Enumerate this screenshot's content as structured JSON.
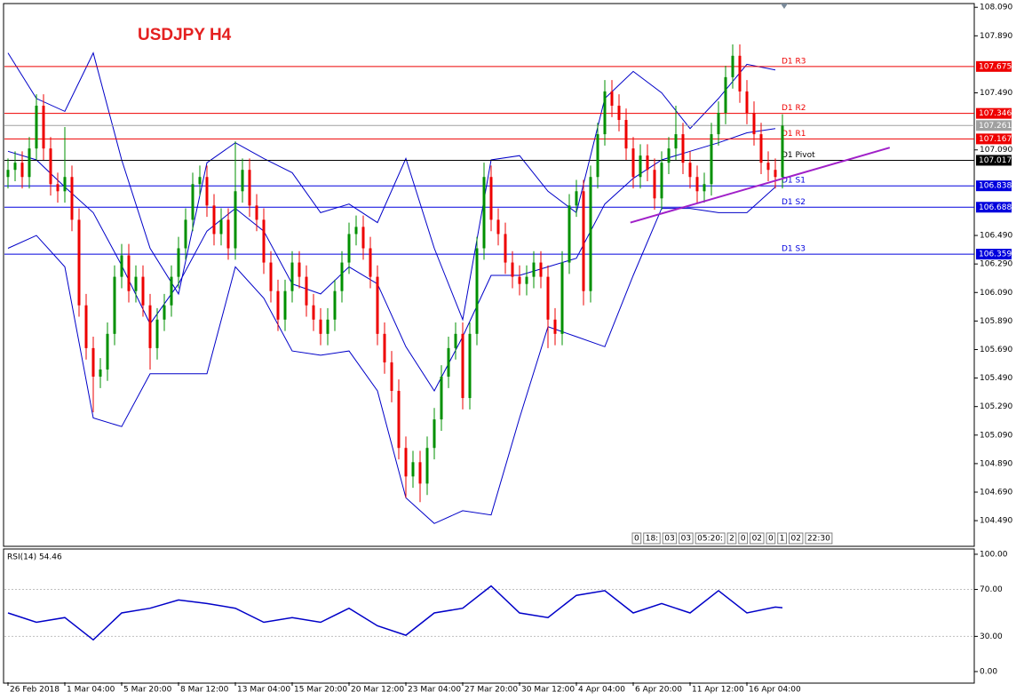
{
  "chart_data": {
    "type": "candlestick",
    "title": "USDJPY  H4",
    "up_color": "#009000",
    "down_color": "#ee0000",
    "xlim": [
      -0.5,
      136
    ],
    "xticks": [
      {
        "value": 0,
        "label": "26 Feb 2018"
      },
      {
        "value": 8,
        "label": "1 Mar 04:00"
      },
      {
        "value": 16,
        "label": "5 Mar 20:00"
      },
      {
        "value": 24,
        "label": "8 Mar 12:00"
      },
      {
        "value": 32,
        "label": "13 Mar 04:00"
      },
      {
        "value": 40,
        "label": "15 Mar 20:00"
      },
      {
        "value": 48,
        "label": "20 Mar 12:00"
      },
      {
        "value": 56,
        "label": "23 Mar 04:00"
      },
      {
        "value": 64,
        "label": "27 Mar 20:00"
      },
      {
        "value": 72,
        "label": "30 Mar 12:00"
      },
      {
        "value": 80,
        "label": "4 Apr 04:00"
      },
      {
        "value": 88,
        "label": "6 Apr 20:00"
      },
      {
        "value": 96,
        "label": "11 Apr 12:00"
      },
      {
        "value": 104,
        "label": "16 Apr 04:00"
      }
    ],
    "ylim": [
      104.31,
      108.11
    ],
    "yticks": [
      {
        "value": 108.09,
        "label": "108.090"
      },
      {
        "value": 107.89,
        "label": "107.890"
      },
      {
        "value": 107.49,
        "label": "107.490"
      },
      {
        "value": 107.09,
        "label": "107.090"
      },
      {
        "value": 106.49,
        "label": "106.490"
      },
      {
        "value": 106.29,
        "label": "106.290"
      },
      {
        "value": 106.09,
        "label": "106.090"
      },
      {
        "value": 105.89,
        "label": "105.890"
      },
      {
        "value": 105.69,
        "label": "105.690"
      },
      {
        "value": 105.49,
        "label": "105.490"
      },
      {
        "value": 105.29,
        "label": "105.290"
      },
      {
        "value": 105.09,
        "label": "105.090"
      },
      {
        "value": 104.89,
        "label": "104.890"
      },
      {
        "value": 104.69,
        "label": "104.690"
      },
      {
        "value": 104.49,
        "label": "104.490"
      }
    ],
    "candles": {
      "open": [
        106.9,
        106.95,
        107.0,
        106.9,
        107.1,
        107.4,
        107.1,
        106.85,
        106.8,
        106.9,
        106.6,
        106.0,
        105.7,
        105.5,
        105.55,
        105.8,
        106.2,
        106.35,
        106.1,
        106.2,
        106.0,
        105.7,
        105.9,
        106.0,
        106.2,
        106.4,
        106.6,
        106.85,
        106.9,
        106.7,
        106.5,
        106.6,
        106.4,
        106.8,
        106.95,
        106.7,
        106.6,
        106.3,
        106.1,
        105.9,
        106.1,
        106.3,
        106.2,
        106.0,
        105.9,
        105.8,
        105.9,
        106.1,
        106.3,
        106.5,
        106.55,
        106.4,
        106.2,
        105.8,
        105.6,
        105.4,
        105.0,
        104.8,
        104.9,
        104.75,
        105.0,
        105.2,
        105.5,
        105.7,
        105.8,
        105.35,
        105.8,
        106.4,
        106.9,
        106.6,
        106.5,
        106.3,
        106.2,
        106.15,
        106.2,
        106.3,
        106.2,
        105.9,
        105.8,
        106.3,
        106.7,
        106.8,
        106.1,
        106.9,
        107.2,
        107.5,
        107.4,
        107.3,
        107.1,
        106.9,
        107.05,
        106.95,
        106.75,
        107.0,
        107.1,
        107.2,
        107.0,
        106.9,
        106.8,
        106.85,
        107.2,
        107.35,
        107.6,
        107.75,
        107.5,
        107.35,
        107.2,
        107.0,
        106.95,
        106.9
      ],
      "high": [
        107.03,
        107.08,
        107.08,
        107.18,
        107.48,
        107.48,
        107.18,
        106.93,
        107.25,
        106.98,
        106.68,
        106.08,
        105.78,
        105.63,
        105.88,
        106.28,
        106.43,
        106.43,
        106.28,
        106.28,
        106.08,
        105.98,
        106.08,
        106.28,
        106.48,
        106.68,
        106.93,
        106.98,
        106.98,
        106.78,
        106.68,
        106.68,
        107.15,
        107.03,
        107.03,
        106.78,
        106.68,
        106.38,
        106.18,
        106.18,
        106.38,
        106.38,
        106.28,
        106.08,
        105.98,
        105.98,
        106.18,
        106.38,
        106.58,
        106.63,
        106.63,
        106.48,
        106.28,
        105.88,
        105.68,
        105.48,
        105.08,
        104.98,
        104.98,
        105.08,
        105.28,
        105.58,
        105.78,
        105.88,
        105.88,
        105.88,
        106.48,
        107.0,
        106.98,
        106.68,
        106.58,
        106.38,
        106.28,
        106.28,
        106.38,
        106.38,
        106.28,
        105.98,
        106.38,
        106.78,
        106.88,
        106.88,
        106.98,
        107.28,
        107.58,
        107.58,
        107.48,
        107.38,
        107.18,
        107.13,
        107.13,
        107.03,
        107.08,
        107.18,
        107.4,
        107.28,
        107.08,
        106.98,
        106.93,
        107.28,
        107.43,
        107.68,
        107.83,
        107.83,
        107.58,
        107.43,
        107.28,
        107.08,
        107.03,
        107.34
      ],
      "low": [
        106.82,
        106.87,
        106.82,
        106.82,
        107.02,
        107.02,
        106.77,
        106.72,
        106.72,
        106.52,
        105.92,
        105.62,
        105.25,
        105.42,
        105.47,
        105.72,
        106.12,
        106.02,
        106.02,
        105.92,
        105.55,
        105.62,
        105.82,
        105.92,
        106.12,
        106.32,
        106.52,
        106.77,
        106.62,
        106.42,
        106.42,
        106.32,
        106.32,
        106.72,
        106.62,
        106.52,
        106.22,
        106.02,
        105.82,
        105.82,
        106.02,
        106.12,
        105.92,
        105.82,
        105.72,
        105.72,
        105.82,
        106.02,
        106.22,
        106.42,
        106.32,
        106.12,
        105.72,
        105.52,
        105.32,
        104.92,
        104.65,
        104.72,
        104.62,
        104.67,
        104.92,
        105.12,
        105.42,
        105.62,
        105.27,
        105.27,
        105.72,
        106.32,
        106.52,
        106.42,
        106.22,
        106.12,
        106.07,
        106.07,
        106.12,
        106.12,
        105.7,
        105.72,
        105.72,
        106.22,
        106.62,
        106.0,
        106.02,
        106.82,
        107.12,
        107.32,
        107.22,
        107.02,
        106.82,
        106.82,
        106.87,
        106.67,
        106.67,
        106.92,
        107.02,
        106.92,
        106.82,
        106.72,
        106.72,
        106.77,
        107.12,
        107.27,
        107.52,
        107.42,
        107.27,
        107.12,
        106.92,
        106.87,
        106.82,
        106.82
      ],
      "close": [
        106.95,
        107.0,
        106.9,
        107.1,
        107.4,
        107.1,
        106.85,
        106.8,
        106.9,
        106.6,
        106.0,
        105.7,
        105.5,
        105.55,
        105.8,
        106.2,
        106.35,
        106.1,
        106.2,
        106.0,
        105.7,
        105.9,
        106.0,
        106.2,
        106.4,
        106.6,
        106.85,
        106.9,
        106.7,
        106.5,
        106.6,
        106.4,
        106.8,
        106.95,
        106.7,
        106.6,
        106.3,
        106.1,
        105.9,
        106.1,
        106.3,
        106.2,
        106.0,
        105.9,
        105.8,
        105.9,
        106.1,
        106.3,
        106.5,
        106.55,
        106.4,
        106.2,
        105.8,
        105.6,
        105.4,
        105.0,
        104.8,
        104.9,
        104.75,
        105.0,
        105.2,
        105.5,
        105.7,
        105.8,
        105.35,
        105.8,
        106.4,
        106.9,
        106.6,
        106.5,
        106.3,
        106.2,
        106.15,
        106.2,
        106.3,
        106.2,
        105.9,
        105.8,
        106.3,
        106.7,
        106.8,
        106.1,
        106.9,
        107.2,
        107.5,
        107.4,
        107.3,
        107.1,
        106.9,
        107.05,
        106.95,
        106.75,
        107.0,
        107.1,
        107.2,
        107.0,
        106.9,
        106.8,
        106.85,
        107.2,
        107.35,
        107.6,
        107.75,
        107.5,
        107.35,
        107.2,
        107.0,
        106.95,
        106.9,
        107.26
      ]
    },
    "bands_x": [
      0,
      4,
      8,
      12,
      16,
      20,
      24,
      28,
      32,
      36,
      40,
      44,
      48,
      52,
      56,
      60,
      64,
      68,
      72,
      76,
      80,
      84,
      88,
      92,
      96,
      100,
      104,
      108
    ],
    "bands": [
      {
        "color": "#0000c8",
        "values": [
          107.77,
          107.45,
          107.36,
          107.77,
          107.02,
          106.4,
          106.08,
          107.0,
          107.14,
          107.03,
          106.93,
          106.65,
          106.71,
          106.58,
          107.03,
          106.4,
          105.9,
          107.02,
          107.05,
          106.8,
          106.65,
          107.45,
          107.64,
          107.49,
          107.24,
          107.45,
          107.69,
          107.65
        ]
      },
      {
        "color": "#0000c8",
        "values": [
          107.08,
          107.02,
          106.83,
          106.65,
          106.28,
          105.87,
          106.15,
          106.52,
          106.68,
          106.52,
          106.15,
          106.08,
          106.27,
          106.15,
          105.71,
          105.4,
          105.78,
          106.21,
          106.21,
          106.27,
          106.33,
          106.71,
          106.89,
          107.02,
          107.08,
          107.14,
          107.21,
          107.24
        ]
      },
      {
        "color": "#0000c8",
        "values": [
          106.4,
          106.49,
          106.27,
          105.21,
          105.15,
          105.52,
          105.52,
          105.52,
          106.27,
          106.05,
          105.68,
          105.65,
          105.68,
          105.4,
          104.65,
          104.47,
          104.56,
          104.53,
          105.21,
          105.85,
          105.78,
          105.71,
          106.21,
          106.68,
          106.68,
          106.65,
          106.65,
          106.83
        ]
      }
    ],
    "pivots": [
      {
        "name": "D1 R3",
        "value": 107.675,
        "color": "#ee0000"
      },
      {
        "name": "D1 R2",
        "value": 107.346,
        "color": "#ee0000"
      },
      {
        "name": "D1 R1",
        "value": 107.167,
        "color": "#ee0000"
      },
      {
        "name": "D1 Pivot",
        "value": 107.017,
        "color": "#000000"
      },
      {
        "name": "D1 S1",
        "value": 106.838,
        "color": "#0000dd"
      },
      {
        "name": "D1 S2",
        "value": 106.688,
        "color": "#0000dd"
      },
      {
        "name": "D1 S3",
        "value": 106.359,
        "color": "#0000dd"
      }
    ],
    "current_price": {
      "value": 107.261,
      "color": "#a0a0a0"
    },
    "trendline": {
      "x": [
        87.6,
        124.1
      ],
      "values": [
        106.58,
        107.106
      ],
      "color": "#a020c8"
    },
    "period_boxes": [
      "0",
      "18:",
      "03",
      "03",
      "05:20:",
      "2",
      "0",
      "02",
      "0",
      "1",
      "02",
      "22:30"
    ],
    "rsi": {
      "label": "RSI(14) 54.46",
      "color": "#0000c8",
      "x": [
        0,
        4,
        8,
        12,
        16,
        20,
        24,
        28,
        32,
        36,
        40,
        44,
        48,
        52,
        56,
        60,
        64,
        68,
        72,
        76,
        80,
        84,
        88,
        92,
        96,
        100,
        104,
        108,
        109
      ],
      "values": [
        50,
        42,
        46,
        27,
        50,
        54,
        61,
        58,
        54,
        42,
        46,
        42,
        54,
        39,
        31,
        50,
        54,
        73,
        50,
        46,
        65,
        69,
        50,
        58,
        50,
        69,
        50,
        55,
        54.46
      ],
      "ylim": [
        -9.1,
        104.5
      ],
      "yticks": [
        {
          "value": 100,
          "label": "100.00"
        },
        {
          "value": 70,
          "label": "70.00"
        },
        {
          "value": 30,
          "label": "30.00"
        },
        {
          "value": 0,
          "label": "0.00"
        }
      ],
      "levels": [
        70,
        30
      ]
    }
  }
}
